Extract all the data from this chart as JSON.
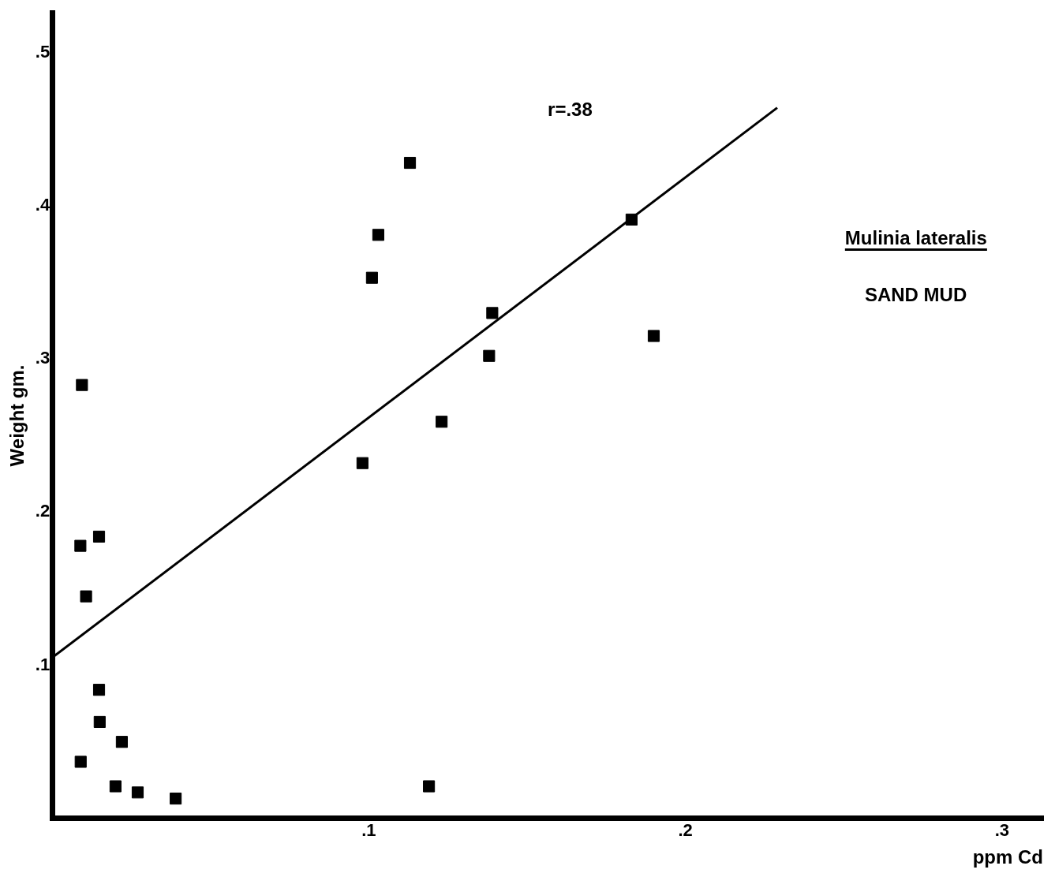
{
  "chart_data": {
    "type": "scatter",
    "xlabel": "ppm Cd",
    "ylabel": "Weight gm.",
    "annotations": [
      "r=.38",
      "Mulinia lateralis",
      "SAND MUD"
    ],
    "xlim": [
      0,
      0.313
    ],
    "ylim": [
      0,
      0.526
    ],
    "xticks": [
      {
        "value": 0.1,
        "label": ".1"
      },
      {
        "value": 0.2,
        "label": ".2"
      },
      {
        "value": 0.3,
        "label": ".3"
      }
    ],
    "yticks": [
      {
        "value": 0.1,
        "label": ".1"
      },
      {
        "value": 0.2,
        "label": ".2"
      },
      {
        "value": 0.3,
        "label": ".3"
      },
      {
        "value": 0.4,
        "label": ".4"
      },
      {
        "value": 0.5,
        "label": ".5"
      }
    ],
    "grid": false,
    "legend": false,
    "series": [
      {
        "marker": "square",
        "color": "#000000",
        "x": [
          0.0094,
          0.0089,
          0.0148,
          0.0107,
          0.0148,
          0.015,
          0.022,
          0.009,
          0.02,
          0.027,
          0.039,
          0.098,
          0.101,
          0.103,
          0.113,
          0.119,
          0.123,
          0.138,
          0.139,
          0.183,
          0.19
        ],
        "values": [
          0.283,
          0.178,
          0.184,
          0.145,
          0.084,
          0.063,
          0.05,
          0.037,
          0.021,
          0.017,
          0.013,
          0.232,
          0.353,
          0.381,
          0.428,
          0.021,
          0.259,
          0.302,
          0.33,
          0.391,
          0.315
        ]
      },
      {
        "type": "line",
        "marker": "none",
        "color": "#000000",
        "x": [
          0,
          0.229
        ],
        "values": [
          0.105,
          0.464
        ]
      }
    ]
  }
}
